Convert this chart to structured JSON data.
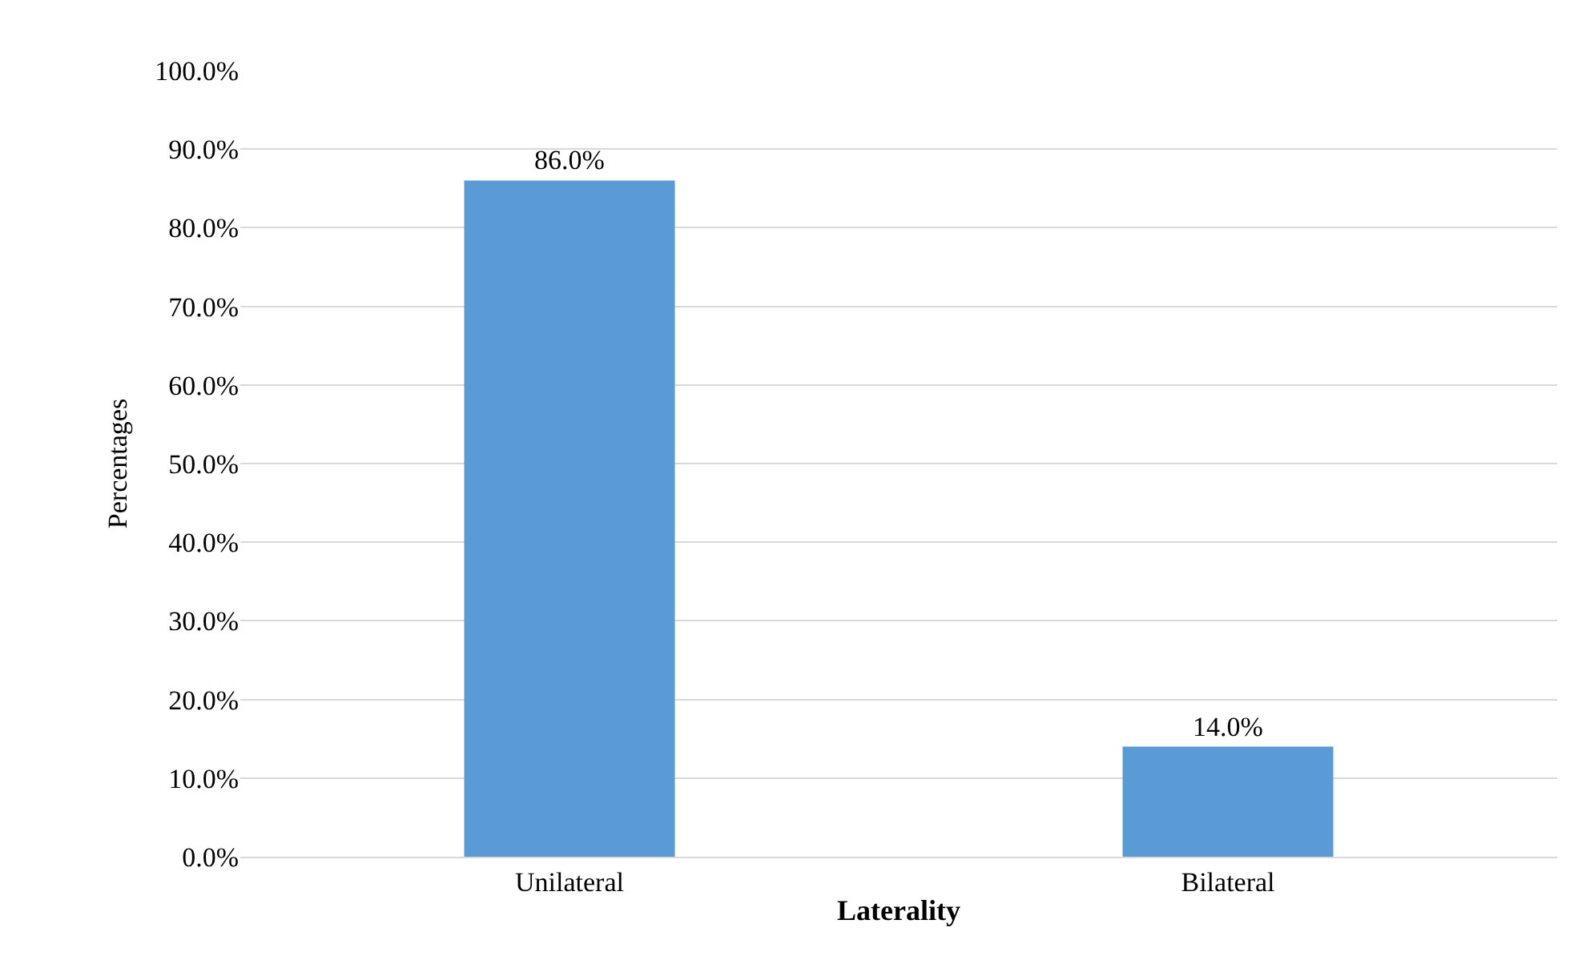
{
  "chart_data": {
    "type": "bar",
    "xlabel": "Laterality",
    "ylabel": "Percentages",
    "categories": [
      "Unilateral",
      "Bilateral"
    ],
    "values": [
      86,
      14
    ],
    "color": "#5b9bd5",
    "value_labels": [
      "86.0%",
      "14.0%"
    ],
    "ylim": [
      0,
      100
    ],
    "yticks": [
      {
        "value": 0,
        "label": "0.0%"
      },
      {
        "value": 10,
        "label": "10.0%"
      },
      {
        "value": 20,
        "label": "20.0%"
      },
      {
        "value": 30,
        "label": "30.0%"
      },
      {
        "value": 40,
        "label": "40.0%"
      },
      {
        "value": 50,
        "label": "50.0%"
      },
      {
        "value": 60,
        "label": "60.0%"
      },
      {
        "value": 70,
        "label": "70.0%"
      },
      {
        "value": 80,
        "label": "80.0%"
      },
      {
        "value": 90,
        "label": "90.0%"
      },
      {
        "value": 100,
        "label": "100.0%"
      }
    ],
    "grid": "y"
  }
}
